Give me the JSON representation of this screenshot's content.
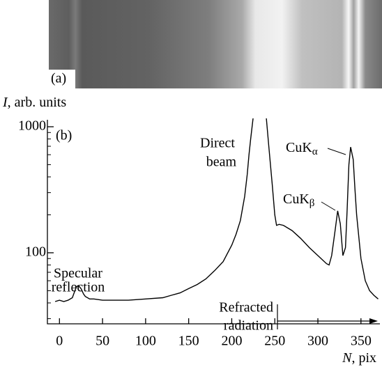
{
  "chart_data": {
    "type": "line",
    "panel_a_label": "(a)",
    "panel_b_label": "(b)",
    "y_label": {
      "symbol": "I",
      "text": ", arb. units"
    },
    "x_label": {
      "symbol": "N",
      "text": ", pix"
    },
    "log_y": true,
    "xlim": [
      -14,
      372
    ],
    "ylim": [
      27.3,
      1000
    ],
    "xticks": [
      0,
      50,
      100,
      150,
      200,
      250,
      300,
      350
    ],
    "yticks": [
      100,
      1000
    ],
    "yminorticks": [
      30,
      40,
      50,
      60,
      70,
      80,
      90,
      200,
      300,
      400,
      500,
      600,
      700,
      800,
      900
    ],
    "series": [
      {
        "color": "#000000",
        "x": [
          -5,
          0,
          5,
          10,
          15,
          18,
          20,
          22,
          25,
          28,
          30,
          35,
          40,
          50,
          60,
          80,
          100,
          120,
          130,
          140,
          150,
          160,
          170,
          180,
          190,
          200,
          205,
          210,
          215,
          218,
          220,
          222,
          225,
          240,
          243,
          247,
          250,
          252,
          255,
          260,
          270,
          280,
          290,
          300,
          310,
          313,
          316,
          320,
          323,
          326,
          329,
          332,
          334,
          336,
          338,
          341,
          343,
          345,
          350,
          355,
          360,
          365,
          370
        ],
        "values": [
          41,
          42,
          41,
          42,
          44,
          50,
          54,
          55,
          52,
          47,
          45,
          43,
          43,
          42,
          42,
          42,
          43,
          44,
          46,
          48,
          52,
          56,
          62,
          72,
          85,
          115,
          140,
          180,
          280,
          420,
          600,
          800,
          1200,
          1200,
          700,
          350,
          200,
          165,
          168,
          165,
          150,
          130,
          110,
          95,
          82,
          80,
          95,
          150,
          215,
          170,
          95,
          110,
          220,
          500,
          690,
          550,
          320,
          200,
          90,
          60,
          50,
          46,
          43
        ]
      }
    ],
    "annotations": [
      {
        "lines": [
          "Specular",
          "reflection"
        ]
      },
      {
        "lines": [
          "Direct",
          "beam"
        ]
      },
      {
        "text": "CuK",
        "subscript": "α"
      },
      {
        "text": "CuK",
        "subscript": "β"
      },
      {
        "lines": [
          "Refracted",
          "radiation"
        ]
      }
    ]
  }
}
